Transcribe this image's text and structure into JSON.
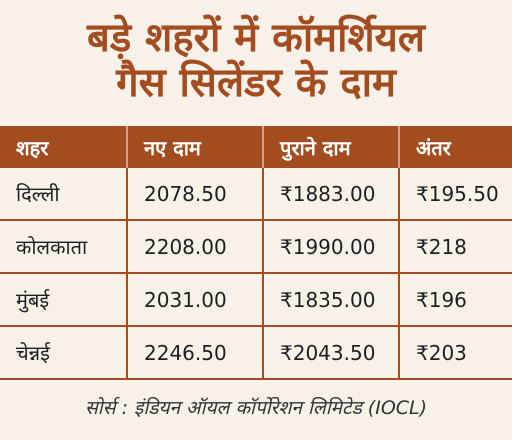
{
  "title": {
    "line1": "बड़े शहरों में कॉमर्शियल",
    "line2": "गैस सिलेंडर के दाम"
  },
  "table": {
    "headers": [
      "शहर",
      "नए दाम",
      "पुराने दाम",
      "अंतर"
    ],
    "rows": [
      [
        "दिल्ली",
        "2078.50",
        "₹1883.00",
        "₹195.50"
      ],
      [
        "कोलकाता",
        "2208.00",
        "₹1990.00",
        "₹218"
      ],
      [
        "मुंबई",
        "2031.00",
        "₹1835.00",
        "₹196"
      ],
      [
        "चेन्नई",
        "2246.50",
        "₹2043.50",
        "₹203"
      ]
    ]
  },
  "footer": {
    "source": "सोर्स : इंडियन ऑयल कॉर्पोरेशन लिमिटेड (IOCL)"
  },
  "colors": {
    "accent": "#a24c1f",
    "background": "#f7f1ea",
    "header_text": "#ffffff"
  }
}
